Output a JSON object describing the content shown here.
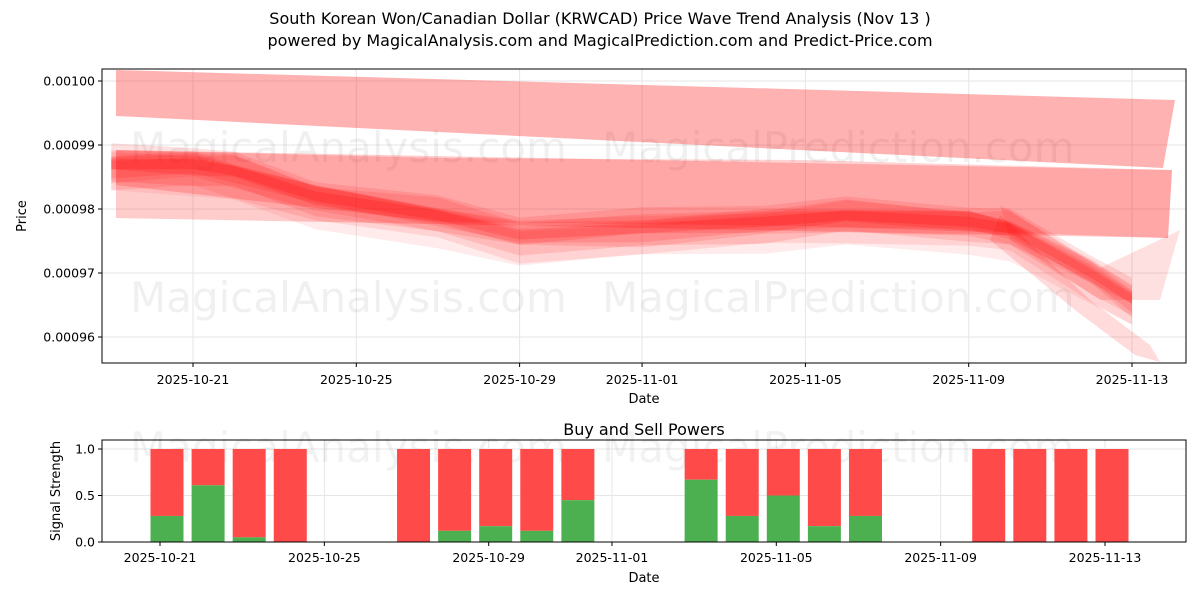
{
  "title_line1": "South Korean Won/Canadian Dollar (KRWCAD) Price Wave Trend Analysis (Nov 13 )",
  "title_line2": "powered by MagicalAnalysis.com and MagicalPrediction.com and Predict-Price.com",
  "watermarks": [
    "MagicalAnalysis.com",
    "MagicalPrediction.com"
  ],
  "colors": {
    "band": "#ff0000",
    "buy": "#4caf50",
    "sell": "#ff4a4a",
    "grid": "#e6e6e6"
  },
  "chart_data": [
    {
      "type": "area",
      "title": "South Korean Won/Canadian Dollar (KRWCAD) Price Wave Trend Analysis (Nov 13 )",
      "xlabel": "Date",
      "ylabel": "Price",
      "x_ticks": [
        "2025-10-21",
        "2025-10-25",
        "2025-10-29",
        "2025-11-01",
        "2025-11-05",
        "2025-11-09",
        "2025-11-13"
      ],
      "y_ticks": [
        "0.00096",
        "0.00097",
        "0.00098",
        "0.00099",
        "0.00100"
      ],
      "ylim": [
        0.000956,
        0.001002
      ],
      "grid": true,
      "description": "Overlapping translucent red wave bands showing price trend; price declines from ~0.000987 (Oct 20) to ~0.000975 (Oct 28), steady ~0.000978 through Nov 9, then drops to ~0.000965 by Nov 13",
      "central_trend": {
        "x": [
          "2025-10-19",
          "2025-10-21",
          "2025-10-22",
          "2025-10-24",
          "2025-10-27",
          "2025-10-29",
          "2025-11-01",
          "2025-11-04",
          "2025-11-06",
          "2025-11-09",
          "2025-11-10",
          "2025-11-12",
          "2025-11-13"
        ],
        "y": [
          0.000987,
          0.000987,
          0.000986,
          0.000982,
          0.000979,
          0.000976,
          0.000977,
          0.000978,
          0.000979,
          0.000978,
          0.000977,
          0.00097,
          0.000966
        ]
      },
      "upper_band": {
        "x": [
          "2025-10-18",
          "2025-10-23",
          "2025-10-27",
          "2025-11-01",
          "2025-11-07",
          "2025-11-10",
          "2025-11-14"
        ],
        "y": [
          0.000995,
          0.000994,
          0.000993,
          0.000991,
          0.00099,
          0.000989,
          0.000987
        ]
      }
    },
    {
      "type": "bar",
      "title": "Buy and Sell Powers",
      "xlabel": "Date",
      "ylabel": "Signal Strength",
      "x_ticks": [
        "2025-10-21",
        "2025-10-25",
        "2025-10-29",
        "2025-11-01",
        "2025-11-05",
        "2025-11-09",
        "2025-11-13"
      ],
      "y_ticks": [
        "0.0",
        "0.5",
        "1.0"
      ],
      "ylim": [
        0,
        1.05
      ],
      "stacked": true,
      "categories": [
        "2025-10-21",
        "2025-10-22",
        "2025-10-23",
        "2025-10-24",
        "2025-10-27",
        "2025-10-28",
        "2025-10-29",
        "2025-10-30",
        "2025-10-31",
        "2025-11-03",
        "2025-11-04",
        "2025-11-05",
        "2025-11-06",
        "2025-11-07",
        "2025-11-10",
        "2025-11-11",
        "2025-11-12",
        "2025-11-13"
      ],
      "series": [
        {
          "name": "Buy",
          "color": "#4caf50",
          "values": [
            0.28,
            0.61,
            0.05,
            0.0,
            0.0,
            0.12,
            0.17,
            0.12,
            0.45,
            0.67,
            0.28,
            0.5,
            0.17,
            0.28,
            0.0,
            0.0,
            0.0,
            0.0
          ]
        },
        {
          "name": "Sell",
          "color": "#ff4a4a",
          "values": [
            0.72,
            0.39,
            0.95,
            1.0,
            1.0,
            0.88,
            0.83,
            0.88,
            0.55,
            0.33,
            0.72,
            0.5,
            0.83,
            0.72,
            1.0,
            1.0,
            1.0,
            1.0
          ]
        }
      ]
    }
  ]
}
